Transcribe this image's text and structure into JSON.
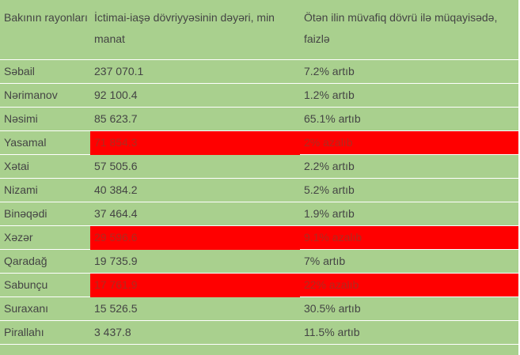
{
  "headers": [
    "Bakının rayonları",
    "İctimai-iaşə dövriyyəsinin dəyəri, min manat",
    "Ötən ilin müvafiq dövrü ilə müqayisədə, faizlə"
  ],
  "rows": [
    {
      "district": "Səbail",
      "value": "237 070.1",
      "change": "7.2% artıb",
      "highlight": false
    },
    {
      "district": "Nərimanov",
      "value": "92 100.4",
      "change": "1.2% artıb",
      "highlight": false
    },
    {
      "district": "Nəsimi",
      "value": "85 623.7",
      "change": "65.1% artıb",
      "highlight": false
    },
    {
      "district": "Yasamal",
      "value": "71 854.3",
      "change": "2% azalıb",
      "highlight": true
    },
    {
      "district": "Xətai",
      "value": "57 505.6",
      "change": "2.2% artıb",
      "highlight": false
    },
    {
      "district": "Nizami",
      "value": "40 384.2",
      "change": "5.2% artıb",
      "highlight": false
    },
    {
      "district": "Binəqədi",
      "value": "37 464.4",
      "change": "1.9% artıb",
      "highlight": false
    },
    {
      "district": "Xəzər",
      "value": "29 596.6",
      "change": "9.1% azalıb",
      "highlight": true
    },
    {
      "district": "Qaradağ",
      "value": "19 735.9",
      "change": "7% artıb",
      "highlight": false
    },
    {
      "district": "Sabunçu",
      "value": "17 761.9",
      "change": "22% azalıb",
      "highlight": true
    },
    {
      "district": "Suraxanı",
      "value": "15 526.5",
      "change": "30.5% artıb",
      "highlight": false
    },
    {
      "district": "Pirallahı",
      "value": "3 437.8",
      "change": "11.5% artıb",
      "highlight": false
    }
  ],
  "colors": {
    "background": "#a9d08e",
    "highlight": "#ff0000",
    "text": "#444444"
  }
}
